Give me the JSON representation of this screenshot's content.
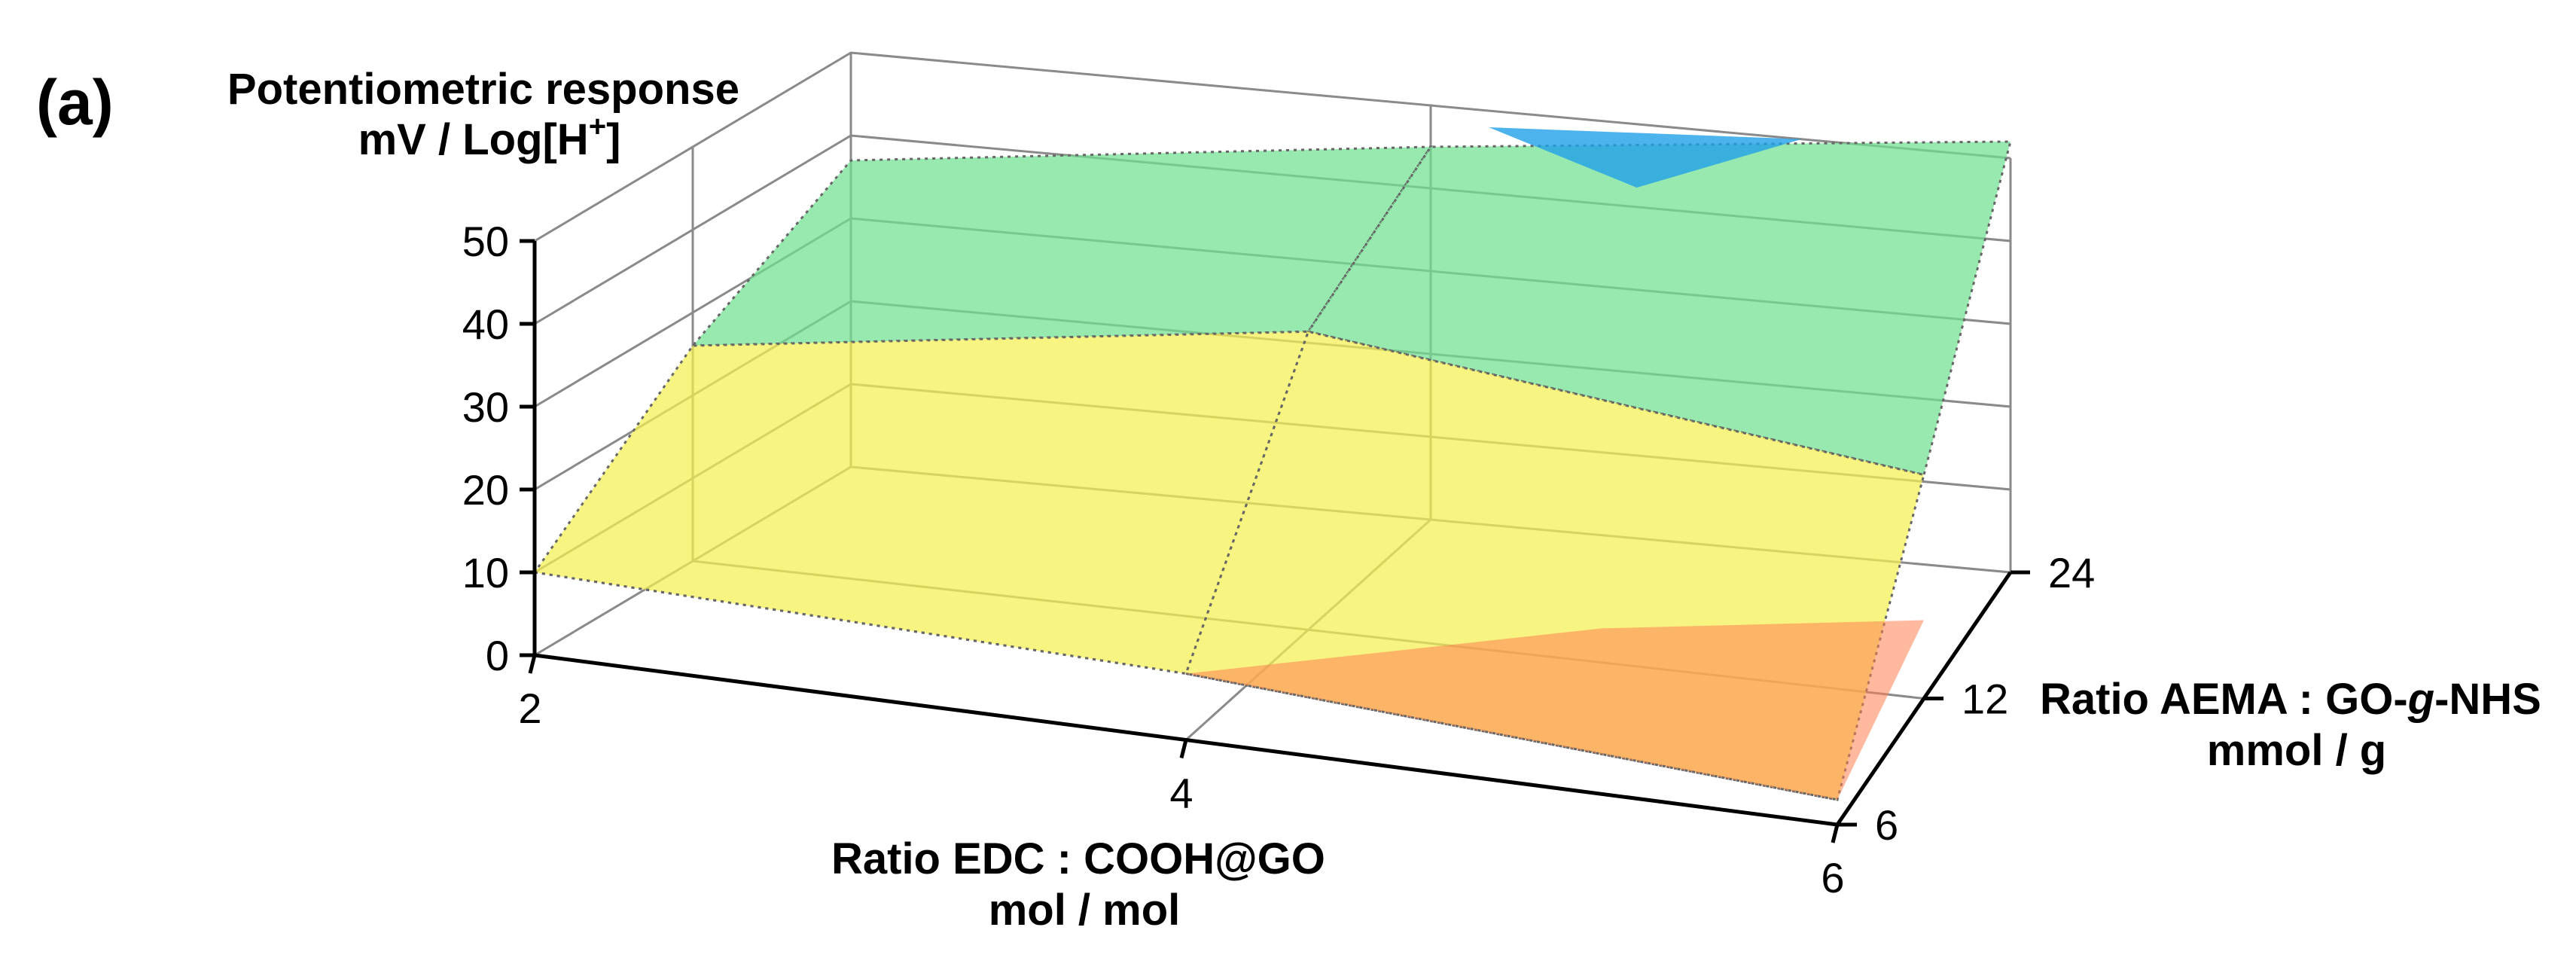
{
  "panel_label": "(a)",
  "chart_data": {
    "type": "surface3d",
    "title_line1": "Potentiometric response",
    "title_line2_pre": "mV / Log[H",
    "title_line2_sup": "+",
    "title_line2_post": "]",
    "x_axis": {
      "label_line1": "Ratio EDC : COOH@GO",
      "label_line2": "mol / mol",
      "categories": [
        "2",
        "4",
        "6"
      ]
    },
    "y_axis": {
      "label_line1_pre": "Ratio AEMA : GO-",
      "label_line1_ital": "g",
      "label_line1_post": "-NHS",
      "label_line2": "mmol / g",
      "categories": [
        "6",
        "12",
        "24"
      ]
    },
    "z_axis": {
      "ticks": [
        "0",
        "10",
        "20",
        "30",
        "40",
        "50"
      ],
      "min": 0,
      "max": 50
    },
    "z_values": [
      [
        10,
        8,
        3
      ],
      [
        26,
        36,
        27
      ],
      [
        37,
        45,
        52
      ]
    ],
    "colors": {
      "low": "#ff5a4a",
      "mid": "#ffff40",
      "high_mid": "#00dd88",
      "high": "#20a0e8"
    }
  }
}
